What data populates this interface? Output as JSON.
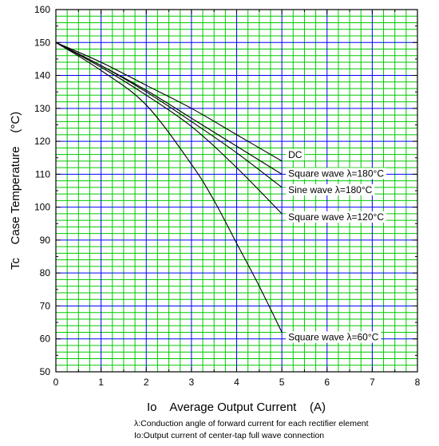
{
  "chart_data": {
    "type": "line",
    "xlabel": "Io    Average Output Current    (A)",
    "ylabel": "Tc    Case Temperature    (°C)",
    "xlim": [
      0,
      8
    ],
    "ylim": [
      50,
      160
    ],
    "xticks": [
      "0",
      "1",
      "2",
      "3",
      "4",
      "5",
      "6",
      "7",
      "8"
    ],
    "yticks": [
      "50",
      "60",
      "70",
      "80",
      "90",
      "100",
      "110",
      "120",
      "130",
      "140",
      "150",
      "160"
    ],
    "grid": true,
    "grid_colors": {
      "major": "#0000ff",
      "minor": "#00c800"
    },
    "line_color": "#000000",
    "series": [
      {
        "name": "DC",
        "x": [
          0,
          1,
          2,
          3,
          4,
          5
        ],
        "y": [
          150,
          144,
          137,
          130,
          122,
          114
        ]
      },
      {
        "name": "Square wave λ=180°C",
        "x": [
          0,
          1,
          2,
          3,
          4,
          5
        ],
        "y": [
          150,
          143,
          135.5,
          127,
          118.5,
          110
        ]
      },
      {
        "name": "Sine wave λ=180°C",
        "x": [
          0,
          1,
          2,
          3,
          4,
          5
        ],
        "y": [
          150,
          143,
          135,
          126,
          116.5,
          106
        ]
      },
      {
        "name": "Square wave λ=120°C",
        "x": [
          0,
          1,
          2,
          3,
          4,
          5
        ],
        "y": [
          150,
          142.5,
          134,
          124.5,
          112,
          98
        ]
      },
      {
        "name": "Square wave λ=60°C",
        "x": [
          0,
          1,
          2,
          3,
          3.5,
          4,
          4.5,
          5
        ],
        "y": [
          150,
          141.5,
          131,
          113,
          102,
          89,
          76,
          62
        ]
      }
    ],
    "annotations": [
      "DC",
      "Square wave λ=180°C",
      "Sine wave λ=180°C",
      "Square wave λ=120°C",
      "Square wave λ=60°C"
    ]
  },
  "notes": {
    "line1": "λ:Conduction angle of forward current for each rectifier element",
    "line2": "Io:Output current of center-tap full wave connection"
  }
}
